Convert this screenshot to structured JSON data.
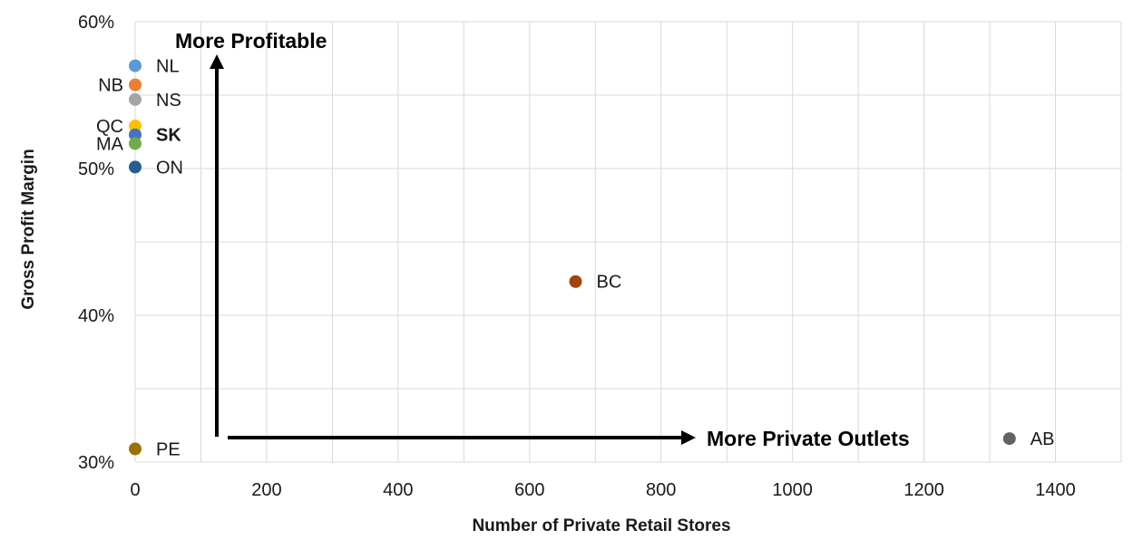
{
  "chart_data": {
    "type": "scatter",
    "xlabel": "Number of Private Retail Stores",
    "ylabel": "Gross Profit Margin",
    "xlim": [
      0,
      1500
    ],
    "ylim": [
      30,
      60
    ],
    "x_ticks": [
      0,
      200,
      400,
      600,
      800,
      1000,
      1200,
      1400
    ],
    "x_tick_labels": [
      "0",
      "200",
      "400",
      "600",
      "800",
      "1000",
      "1200",
      "1400"
    ],
    "y_ticks": [
      30,
      40,
      50,
      60
    ],
    "y_tick_labels": [
      "30%",
      "40%",
      "50%",
      "60%"
    ],
    "grid": true,
    "points": [
      {
        "label": "NL",
        "x": 0,
        "y": 57.0,
        "color": "#5b9bd5",
        "label_side": "right"
      },
      {
        "label": "NB",
        "x": 0,
        "y": 55.7,
        "color": "#ed7d31",
        "label_side": "left"
      },
      {
        "label": "NS",
        "x": 0,
        "y": 54.7,
        "color": "#a5a5a5",
        "label_side": "right"
      },
      {
        "label": "QC",
        "x": 0,
        "y": 52.9,
        "color": "#ffc000",
        "label_side": "left"
      },
      {
        "label": "SK",
        "x": 0,
        "y": 52.3,
        "color": "#4472c4",
        "label_side": "right",
        "bold": true
      },
      {
        "label": "MA",
        "x": 0,
        "y": 51.7,
        "color": "#70ad47",
        "label_side": "left"
      },
      {
        "label": "ON",
        "x": 0,
        "y": 50.1,
        "color": "#255e91",
        "label_side": "right"
      },
      {
        "label": "BC",
        "x": 670,
        "y": 42.3,
        "color": "#9e480e",
        "label_side": "right"
      },
      {
        "label": "PE",
        "x": 0,
        "y": 30.9,
        "color": "#997300",
        "label_side": "right"
      },
      {
        "label": "AB",
        "x": 1330,
        "y": 31.6,
        "color": "#636363",
        "label_side": "right"
      }
    ],
    "annotations": {
      "up_arrow_label": "More Profitable",
      "right_arrow_label": "More Private Outlets"
    }
  }
}
